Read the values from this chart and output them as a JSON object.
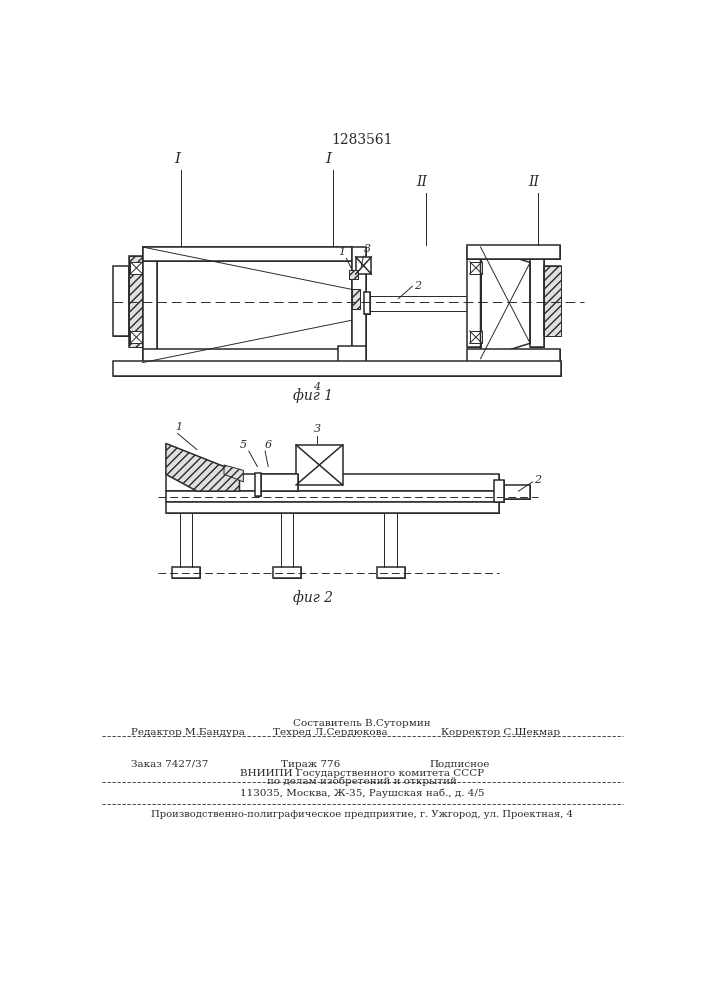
{
  "patent_number": "1283561",
  "line_color": "#2a2a2a",
  "fig1_caption": "фиг 1",
  "fig2_caption": "фиг 2",
  "footer_composit": "Составитель В.Сутормин",
  "footer_editor": "Редактор М.Бандура",
  "footer_techred": "Техред Л.Сердюкова",
  "footer_corrector": "Корректор С.Шекмар",
  "footer_order": "Заказ 7427/37",
  "footer_tirazh": "Тираж 776",
  "footer_podpisnoe": "Подписное",
  "footer_vniip1": "ВНИИПИ Государственного комитета СССР",
  "footer_vniip2": "по делам изобретений и открытий",
  "footer_vniip3": "113035, Москва, Ж-35, Раушская наб., д. 4/5",
  "footer_bottom": "Производственно-полиграфическое предприятие, г. Ужгород, ул. Проектная, 4"
}
